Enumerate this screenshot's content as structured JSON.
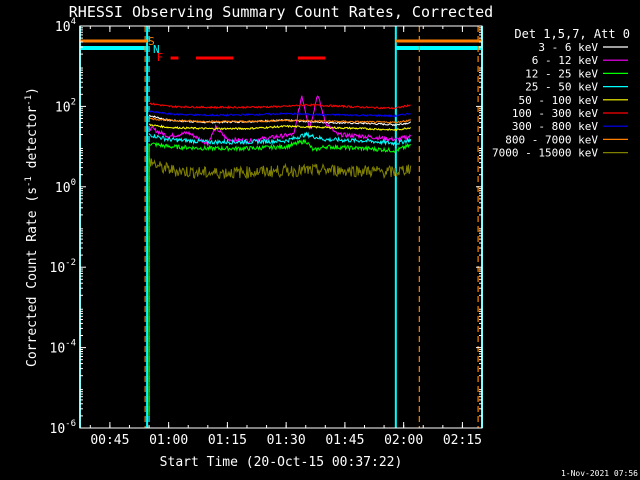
{
  "chart_data": {
    "type": "line",
    "title": "RHESSI Observing Summary Count Rates, Corrected",
    "xlabel": "Start Time (20-Oct-15 00:37:22)",
    "ylabel": "Corrected Count Rate (s⁻¹ detector⁻¹)",
    "ylabel_parts": {
      "main": "Corrected Count Rate (s",
      "sup1": "-1",
      "mid": " detector",
      "sup2": "-1",
      "end": ")"
    },
    "xlim_min": [
      37.37,
      140
    ],
    "ylim": [
      1e-06,
      10000
    ],
    "yscale": "log",
    "x_ticks": [
      {
        "min": 45,
        "label": "00:45"
      },
      {
        "min": 60,
        "label": "01:00"
      },
      {
        "min": 75,
        "label": "01:15"
      },
      {
        "min": 90,
        "label": "01:30"
      },
      {
        "min": 105,
        "label": "01:45"
      },
      {
        "min": 120,
        "label": "02:00"
      },
      {
        "min": 135,
        "label": "02:15"
      }
    ],
    "y_ticks": [
      {
        "exp": "-6",
        "value": 1e-06
      },
      {
        "exp": "-4",
        "value": 0.0001
      },
      {
        "exp": "-2",
        "value": 0.01
      },
      {
        "exp": "0",
        "value": 1
      },
      {
        "exp": "2",
        "value": 100
      },
      {
        "exp": "4",
        "value": 10000
      }
    ],
    "legend": {
      "title": "Det 1,5,7, Att 0",
      "placement": "right"
    },
    "series": [
      {
        "name": "3 - 6 keV",
        "color": "#ffffff",
        "points": [
          [
            55,
            60
          ],
          [
            60,
            45
          ],
          [
            70,
            40
          ],
          [
            80,
            42
          ],
          [
            90,
            45
          ],
          [
            100,
            40
          ],
          [
            110,
            38
          ],
          [
            118,
            35
          ],
          [
            122,
            40
          ]
        ]
      },
      {
        "name": "6 - 12 keV",
        "color": "#ff00ff",
        "points": [
          [
            55,
            30
          ],
          [
            60,
            18
          ],
          [
            65,
            22
          ],
          [
            70,
            12
          ],
          [
            72,
            30
          ],
          [
            75,
            15
          ],
          [
            80,
            14
          ],
          [
            85,
            16
          ],
          [
            88,
            18
          ],
          [
            92,
            20
          ],
          [
            94,
            190
          ],
          [
            96,
            28
          ],
          [
            98,
            200
          ],
          [
            100,
            40
          ],
          [
            103,
            20
          ],
          [
            110,
            18
          ],
          [
            118,
            15
          ],
          [
            122,
            18
          ]
        ]
      },
      {
        "name": "12 - 25 keV",
        "color": "#00ff00",
        "points": [
          [
            55,
            12
          ],
          [
            60,
            10
          ],
          [
            70,
            9
          ],
          [
            80,
            9
          ],
          [
            90,
            10
          ],
          [
            95,
            14
          ],
          [
            97,
            8
          ],
          [
            100,
            10
          ],
          [
            110,
            9
          ],
          [
            118,
            8
          ],
          [
            122,
            11
          ]
        ]
      },
      {
        "name": "25 - 50 keV",
        "color": "#00ffff",
        "points": [
          [
            55,
            20
          ],
          [
            60,
            15
          ],
          [
            70,
            13
          ],
          [
            80,
            13
          ],
          [
            90,
            14
          ],
          [
            95,
            20
          ],
          [
            100,
            15
          ],
          [
            110,
            14
          ],
          [
            118,
            12
          ],
          [
            122,
            15
          ]
        ]
      },
      {
        "name": "50 - 100 keV",
        "color": "#ffff00",
        "points": [
          [
            55,
            35
          ],
          [
            60,
            30
          ],
          [
            70,
            28
          ],
          [
            80,
            28
          ],
          [
            90,
            32
          ],
          [
            100,
            30
          ],
          [
            110,
            28
          ],
          [
            118,
            26
          ],
          [
            122,
            30
          ]
        ]
      },
      {
        "name": "100 - 300 keV",
        "color": "#ff0000",
        "points": [
          [
            55,
            120
          ],
          [
            60,
            100
          ],
          [
            70,
            95
          ],
          [
            80,
            95
          ],
          [
            90,
            100
          ],
          [
            95,
            110
          ],
          [
            100,
            105
          ],
          [
            110,
            95
          ],
          [
            118,
            90
          ],
          [
            122,
            110
          ]
        ]
      },
      {
        "name": "300 - 800 keV",
        "color": "#0000ff",
        "points": [
          [
            55,
            75
          ],
          [
            60,
            65
          ],
          [
            70,
            60
          ],
          [
            80,
            62
          ],
          [
            90,
            66
          ],
          [
            100,
            62
          ],
          [
            110,
            60
          ],
          [
            118,
            58
          ],
          [
            122,
            68
          ]
        ]
      },
      {
        "name": "800 - 7000 keV",
        "color": "#ff8000",
        "points": [
          [
            55,
            50
          ],
          [
            60,
            45
          ],
          [
            70,
            42
          ],
          [
            80,
            42
          ],
          [
            90,
            45
          ],
          [
            100,
            43
          ],
          [
            110,
            41
          ],
          [
            118,
            40
          ],
          [
            122,
            46
          ]
        ]
      },
      {
        "name": "7000 - 15000 keV",
        "color": "#808000",
        "points": [
          [
            55,
            4.5
          ],
          [
            58,
            3
          ],
          [
            62,
            2.5
          ],
          [
            70,
            2.2
          ],
          [
            80,
            2.3
          ],
          [
            90,
            2.5
          ],
          [
            100,
            2.6
          ],
          [
            110,
            2.5
          ],
          [
            118,
            2.3
          ],
          [
            122,
            3
          ]
        ]
      }
    ],
    "annotations": {
      "S_label": "S",
      "N_label": "N",
      "F_label": "F",
      "flag_F": {
        "color": "#ff0000",
        "segments": [
          [
            60.5,
            62.5
          ],
          [
            67,
            76.5
          ],
          [
            93,
            100
          ]
        ]
      },
      "flag_S_color": "#ff8000",
      "flag_N_color": "#00ffff",
      "night": [
        [
          37.37,
          54.5
        ],
        [
          118,
          140
        ]
      ],
      "saa_marks": [
        54,
        124
      ],
      "spike_start": 55
    },
    "footer": "1-Nov-2021 07:56"
  }
}
